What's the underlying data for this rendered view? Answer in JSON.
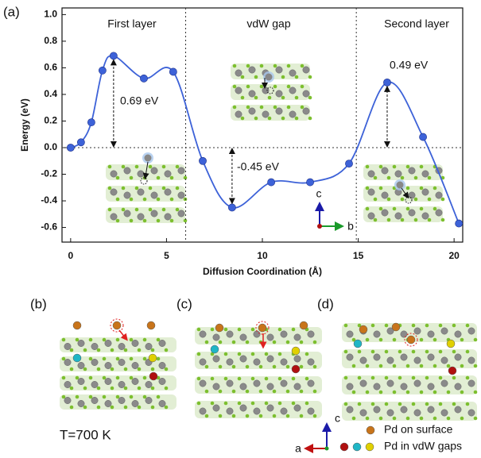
{
  "chart_data": {
    "type": "line",
    "panel_label": "(a)",
    "xlabel": "Diffusion Coordination (Å)",
    "ylabel": "Energy (eV)",
    "x": [
      0,
      0.54,
      1.08,
      1.66,
      2.24,
      3.82,
      5.35,
      6.89,
      8.42,
      10.46,
      12.49,
      14.52,
      16.51,
      18.38,
      20.25
    ],
    "series": [
      {
        "color": "#3d62d8",
        "values": [
          0,
          0.04,
          0.19,
          0.58,
          0.69,
          0.52,
          0.57,
          -0.1,
          -0.45,
          -0.26,
          -0.26,
          -0.12,
          0.49,
          0.08,
          -0.57
        ]
      }
    ],
    "xlim": [
      -0.45,
      20.45
    ],
    "ylim": [
      -0.71,
      1.05
    ],
    "xticks": [
      0,
      5,
      10,
      15,
      20
    ],
    "yticks": [
      -0.6,
      -0.4,
      -0.2,
      {
        "value": 0,
        "label": "0.0"
      },
      0.2,
      0.4,
      0.6,
      0.8,
      {
        "value": 1,
        "label": "1.0"
      }
    ],
    "boundaries": [
      6.0,
      14.9
    ],
    "regions": [
      "First layer",
      "vdW gap",
      "Second layer"
    ],
    "barrier_labels": [
      "0.69 eV",
      "-0.45 eV",
      "0.49 eV"
    ],
    "inset_axes": [
      "c",
      "b"
    ]
  },
  "panels": {
    "labels": [
      "(b)",
      "(c)",
      "(d)"
    ],
    "temperature": "T=700 K",
    "axes": [
      "c",
      "a"
    ],
    "legend": [
      "Pd on surface",
      "Pd in vdW gaps"
    ]
  }
}
